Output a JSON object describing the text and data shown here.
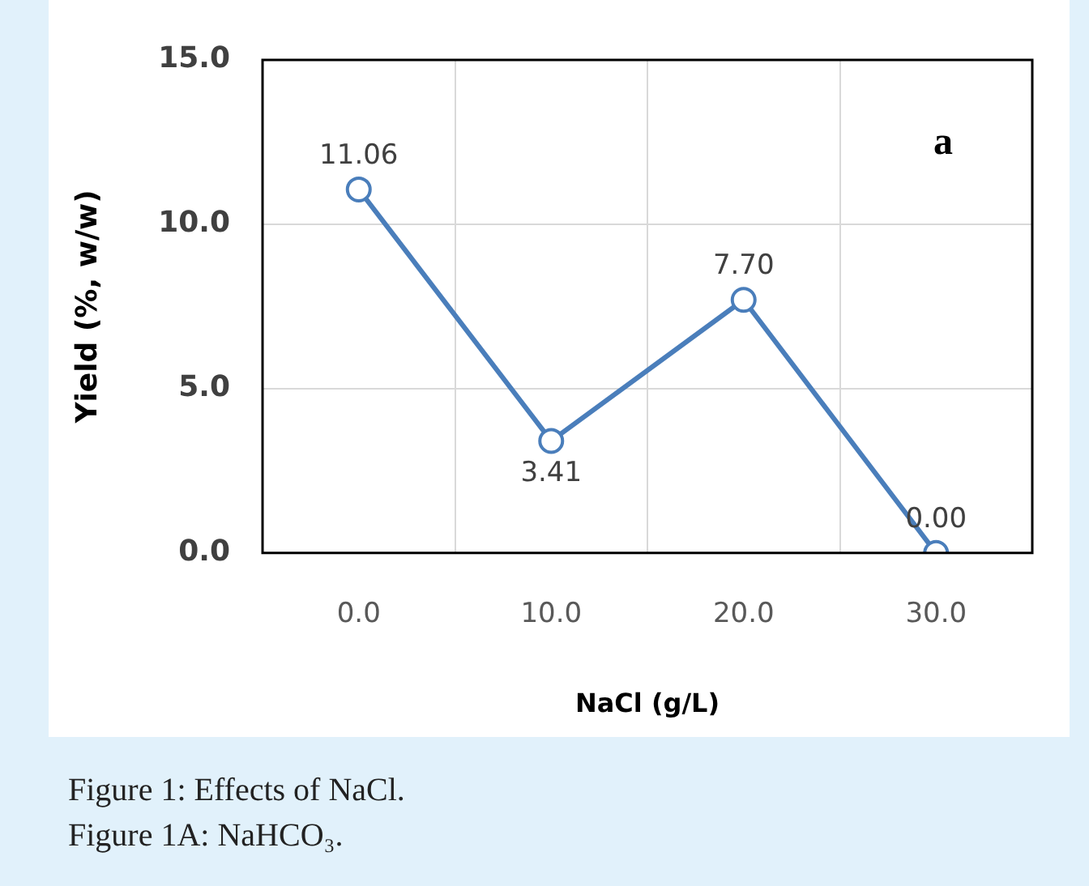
{
  "chart_data": {
    "type": "line",
    "xlabel": "NaCl (g/L)",
    "ylabel": "Yield (%, w/w)",
    "categories": [
      "0.0",
      "10.0",
      "20.0",
      "30.0"
    ],
    "series": [
      {
        "color": "#4a7ebb",
        "values": [
          11.06,
          3.41,
          7.7,
          0
        ],
        "value_labels": [
          "11.06",
          "3.41",
          "7.70",
          "0.00"
        ]
      }
    ],
    "ylim": [
      0,
      15
    ],
    "yticks": [
      {
        "value": 0,
        "label": "0.0"
      },
      {
        "value": 5,
        "label": "5.0"
      },
      {
        "value": 10,
        "label": "10.0"
      },
      {
        "value": 15,
        "label": "15.0"
      }
    ],
    "grid": true,
    "marker": "circle",
    "line_style": "solid",
    "legend": false,
    "annotations": [
      "a",
      "Figure 1: Effects of NaCl.",
      "Figure 1A: NaHCO₃."
    ]
  }
}
